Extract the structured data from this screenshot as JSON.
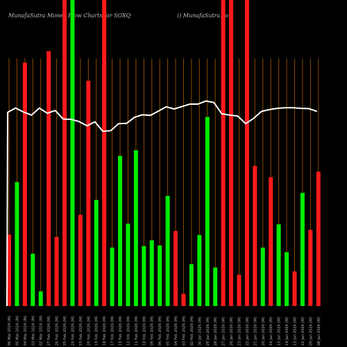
{
  "header": {
    "left": "MunafaSutra  Money Flow  Charts for SOXQ",
    "right": "() MunafaSutra.com"
  },
  "colors": {
    "up": "#00ee00",
    "down": "#ff1a1a",
    "line": "#ffffff",
    "grid": "#8a4a00",
    "label": "#b5b5b5"
  },
  "chart_data": {
    "type": "bar",
    "title": "",
    "ylim": [
      0,
      100
    ],
    "bars": [
      {
        "label": "06 Mar 2026 (M)",
        "value": 23.4,
        "color": "down"
      },
      {
        "label": "05 Mar 2026 (M)",
        "value": 40.5,
        "color": "up"
      },
      {
        "label": "04 Mar 2026 (M)",
        "value": 79.5,
        "color": "down"
      },
      {
        "label": "03 Mar 2026 (M)",
        "value": 17.1,
        "color": "up"
      },
      {
        "label": "02 Mar 2026 (M)",
        "value": 4.8,
        "color": "up"
      },
      {
        "label": "27 Feb 2026 (M)",
        "value": 83.3,
        "color": "down"
      },
      {
        "label": "26 Feb 2026 (M)",
        "value": 22.6,
        "color": "down"
      },
      {
        "label": "25 Feb 2026 (M)",
        "value": 100,
        "color": "down"
      },
      {
        "label": "24 Feb 2026 (M)",
        "value": 100,
        "color": "up"
      },
      {
        "label": "23 Feb 2026 (M)",
        "value": 29.8,
        "color": "down"
      },
      {
        "label": "20 Feb 2026 (M)",
        "value": 73.6,
        "color": "down"
      },
      {
        "label": "19 Feb 2026 (M)",
        "value": 34.7,
        "color": "up"
      },
      {
        "label": "18 Feb 2026 (M)",
        "value": 100,
        "color": "down"
      },
      {
        "label": "17 Feb 2026 (M)",
        "value": 19.1,
        "color": "up"
      },
      {
        "label": "13 Feb 2026 (M)",
        "value": 49.1,
        "color": "up"
      },
      {
        "label": "12 Feb 2026 (M)",
        "value": 26.9,
        "color": "up"
      },
      {
        "label": "11 Feb 2026 (M)",
        "value": 50.9,
        "color": "up"
      },
      {
        "label": "10 Feb 2026 (M)",
        "value": 19.6,
        "color": "up"
      },
      {
        "label": "09 Feb 2026 (M)",
        "value": 21.5,
        "color": "up"
      },
      {
        "label": "06 Feb 2026 (M)",
        "value": 19.8,
        "color": "up"
      },
      {
        "label": "05 Feb 2026 (M)",
        "value": 36.0,
        "color": "up"
      },
      {
        "label": "04 Feb 2026 (M)",
        "value": 24.5,
        "color": "down"
      },
      {
        "label": "03 Feb 2026 (M)",
        "value": 4.0,
        "color": "down"
      },
      {
        "label": "02 Feb 2026 (M)",
        "value": 13.7,
        "color": "up"
      },
      {
        "label": "30 Jan 2026 (M)",
        "value": 23.2,
        "color": "up"
      },
      {
        "label": "29 Jan 2026 (M)",
        "value": 61.8,
        "color": "up"
      },
      {
        "label": "28 Jan 2026 (M)",
        "value": 12.6,
        "color": "up"
      },
      {
        "label": "27 Jan 2026 (M)",
        "value": 100,
        "color": "down"
      },
      {
        "label": "26 Jan 2026 (M)",
        "value": 100,
        "color": "down"
      },
      {
        "label": "23 Jan 2026 (M)",
        "value": 10.2,
        "color": "down"
      },
      {
        "label": "22 Jan 2026 (M)",
        "value": 100,
        "color": "down"
      },
      {
        "label": "21 Jan 2026 (M)",
        "value": 45.8,
        "color": "down"
      },
      {
        "label": "20 Jan 2026 (M)",
        "value": 19.1,
        "color": "up"
      },
      {
        "label": "16 Jan 2026 (M)",
        "value": 42.1,
        "color": "down"
      },
      {
        "label": "15 Jan 2026 (M)",
        "value": 26.7,
        "color": "up"
      },
      {
        "label": "14 Jan 2026 (M)",
        "value": 17.6,
        "color": "up"
      },
      {
        "label": "13 Jan 2026 (M)",
        "value": 11.3,
        "color": "down"
      },
      {
        "label": "12 Jan 2026 (M)",
        "value": 37.0,
        "color": "up"
      },
      {
        "label": "09 Jan 2026 (M)",
        "value": 24.9,
        "color": "down"
      },
      {
        "label": "08 Jan 2026 (M)",
        "value": 43.9,
        "color": "down"
      }
    ],
    "line": [
      63.3,
      64.7,
      63.4,
      62.4,
      64.7,
      63.0,
      63.9,
      61.1,
      61.0,
      60.3,
      58.9,
      60.2,
      57.1,
      57.3,
      59.6,
      59.7,
      61.7,
      62.5,
      62.3,
      63.7,
      65.1,
      64.4,
      65.2,
      66.0,
      66.0,
      67.0,
      66.5,
      62.8,
      62.4,
      62.1,
      59.6,
      61.3,
      63.6,
      64.2,
      64.6,
      64.8,
      64.8,
      64.6,
      64.5,
      63.6
    ]
  }
}
